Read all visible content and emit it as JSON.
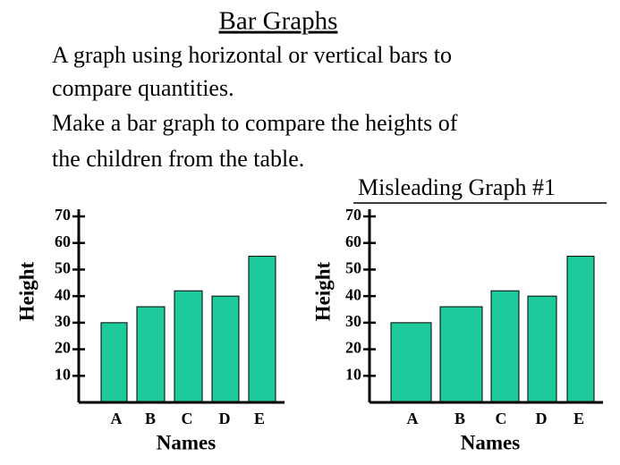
{
  "slide": {
    "title": "Bar Graphs",
    "lines": [
      "A graph using horizontal or vertical bars to",
      "compare quantities.",
      "Make a bar graph to compare the heights of",
      "the children from the table."
    ]
  },
  "chart_data": [
    {
      "type": "bar",
      "categories": [
        "A",
        "B",
        "C",
        "D",
        "E"
      ],
      "values": [
        30,
        36,
        42,
        40,
        55
      ],
      "color": "#1ec99b",
      "ylim": [
        0,
        70
      ],
      "yticks": [
        10,
        20,
        30,
        40,
        50,
        60,
        70
      ],
      "x_label": "Names",
      "y_label": "Height"
    },
    {
      "type": "bar",
      "title": "Misleading Graph #1",
      "categories": [
        "A",
        "B",
        "C",
        "D",
        "E"
      ],
      "values": [
        30,
        36,
        42,
        40,
        55
      ],
      "color": "#1ec99b",
      "ylim": [
        0,
        70
      ],
      "yticks": [
        10,
        20,
        30,
        40,
        50,
        60,
        70
      ],
      "x_label": "Names",
      "y_label": "Height"
    }
  ]
}
